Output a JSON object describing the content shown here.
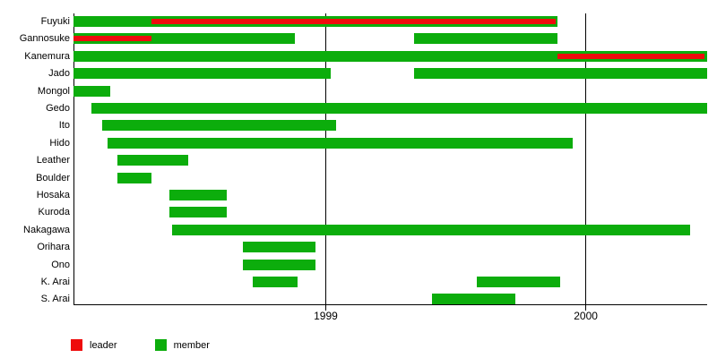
{
  "chart_data": {
    "type": "bar",
    "subtype": "gantt-membership-timeline",
    "title": "",
    "x_axis": {
      "min": 1998.03,
      "max": 2000.47,
      "ticks": [
        {
          "value": 1999,
          "label": "1999"
        },
        {
          "value": 2000,
          "label": "2000"
        }
      ],
      "grid": true
    },
    "colors": {
      "member": "#0cad0c",
      "leader": "#ee0c0c",
      "axis": "#000000"
    },
    "legend": {
      "items": [
        {
          "key": "leader",
          "label": "leader",
          "color": "#ee0c0c"
        },
        {
          "key": "member",
          "label": "member",
          "color": "#0cad0c"
        }
      ]
    },
    "rows": [
      {
        "name": "Fuyuki",
        "member": [
          [
            1998.03,
            1999.89
          ]
        ],
        "leader": [
          [
            1998.33,
            1999.885
          ]
        ]
      },
      {
        "name": "Gannosuke",
        "member": [
          [
            1998.03,
            1998.88
          ],
          [
            1999.34,
            1999.89
          ]
        ],
        "leader": [
          [
            1998.03,
            1998.33
          ]
        ]
      },
      {
        "name": "Kanemura",
        "member": [
          [
            1998.03,
            2000.465
          ]
        ],
        "leader": [
          [
            1999.89,
            2000.455
          ]
        ]
      },
      {
        "name": "Jado",
        "member": [
          [
            1998.03,
            1999.02
          ],
          [
            1999.34,
            2000.465
          ]
        ],
        "leader": []
      },
      {
        "name": "Mongol",
        "member": [
          [
            1998.03,
            1998.17
          ]
        ],
        "leader": []
      },
      {
        "name": "Gedo",
        "member": [
          [
            1998.1,
            2000.465
          ]
        ],
        "leader": []
      },
      {
        "name": "Ito",
        "member": [
          [
            1998.14,
            1999.04
          ]
        ],
        "leader": []
      },
      {
        "name": "Hido",
        "member": [
          [
            1998.16,
            1999.95
          ]
        ],
        "leader": []
      },
      {
        "name": "Leather",
        "member": [
          [
            1998.2,
            1998.47
          ]
        ],
        "leader": []
      },
      {
        "name": "Boulder",
        "member": [
          [
            1998.2,
            1998.33
          ]
        ],
        "leader": []
      },
      {
        "name": "Hosaka",
        "member": [
          [
            1998.4,
            1998.62
          ]
        ],
        "leader": []
      },
      {
        "name": "Kuroda",
        "member": [
          [
            1998.4,
            1998.62
          ]
        ],
        "leader": []
      },
      {
        "name": "Nakagawa",
        "member": [
          [
            1998.41,
            2000.4
          ]
        ],
        "leader": []
      },
      {
        "name": "Orihara",
        "member": [
          [
            1998.68,
            1998.96
          ]
        ],
        "leader": []
      },
      {
        "name": "Ono",
        "member": [
          [
            1998.68,
            1998.96
          ]
        ],
        "leader": []
      },
      {
        "name": "K. Arai",
        "member": [
          [
            1998.72,
            1998.89
          ],
          [
            1999.58,
            1999.9
          ]
        ],
        "leader": []
      },
      {
        "name": "S. Arai",
        "member": [
          [
            1999.41,
            1999.73
          ]
        ],
        "leader": []
      }
    ]
  }
}
